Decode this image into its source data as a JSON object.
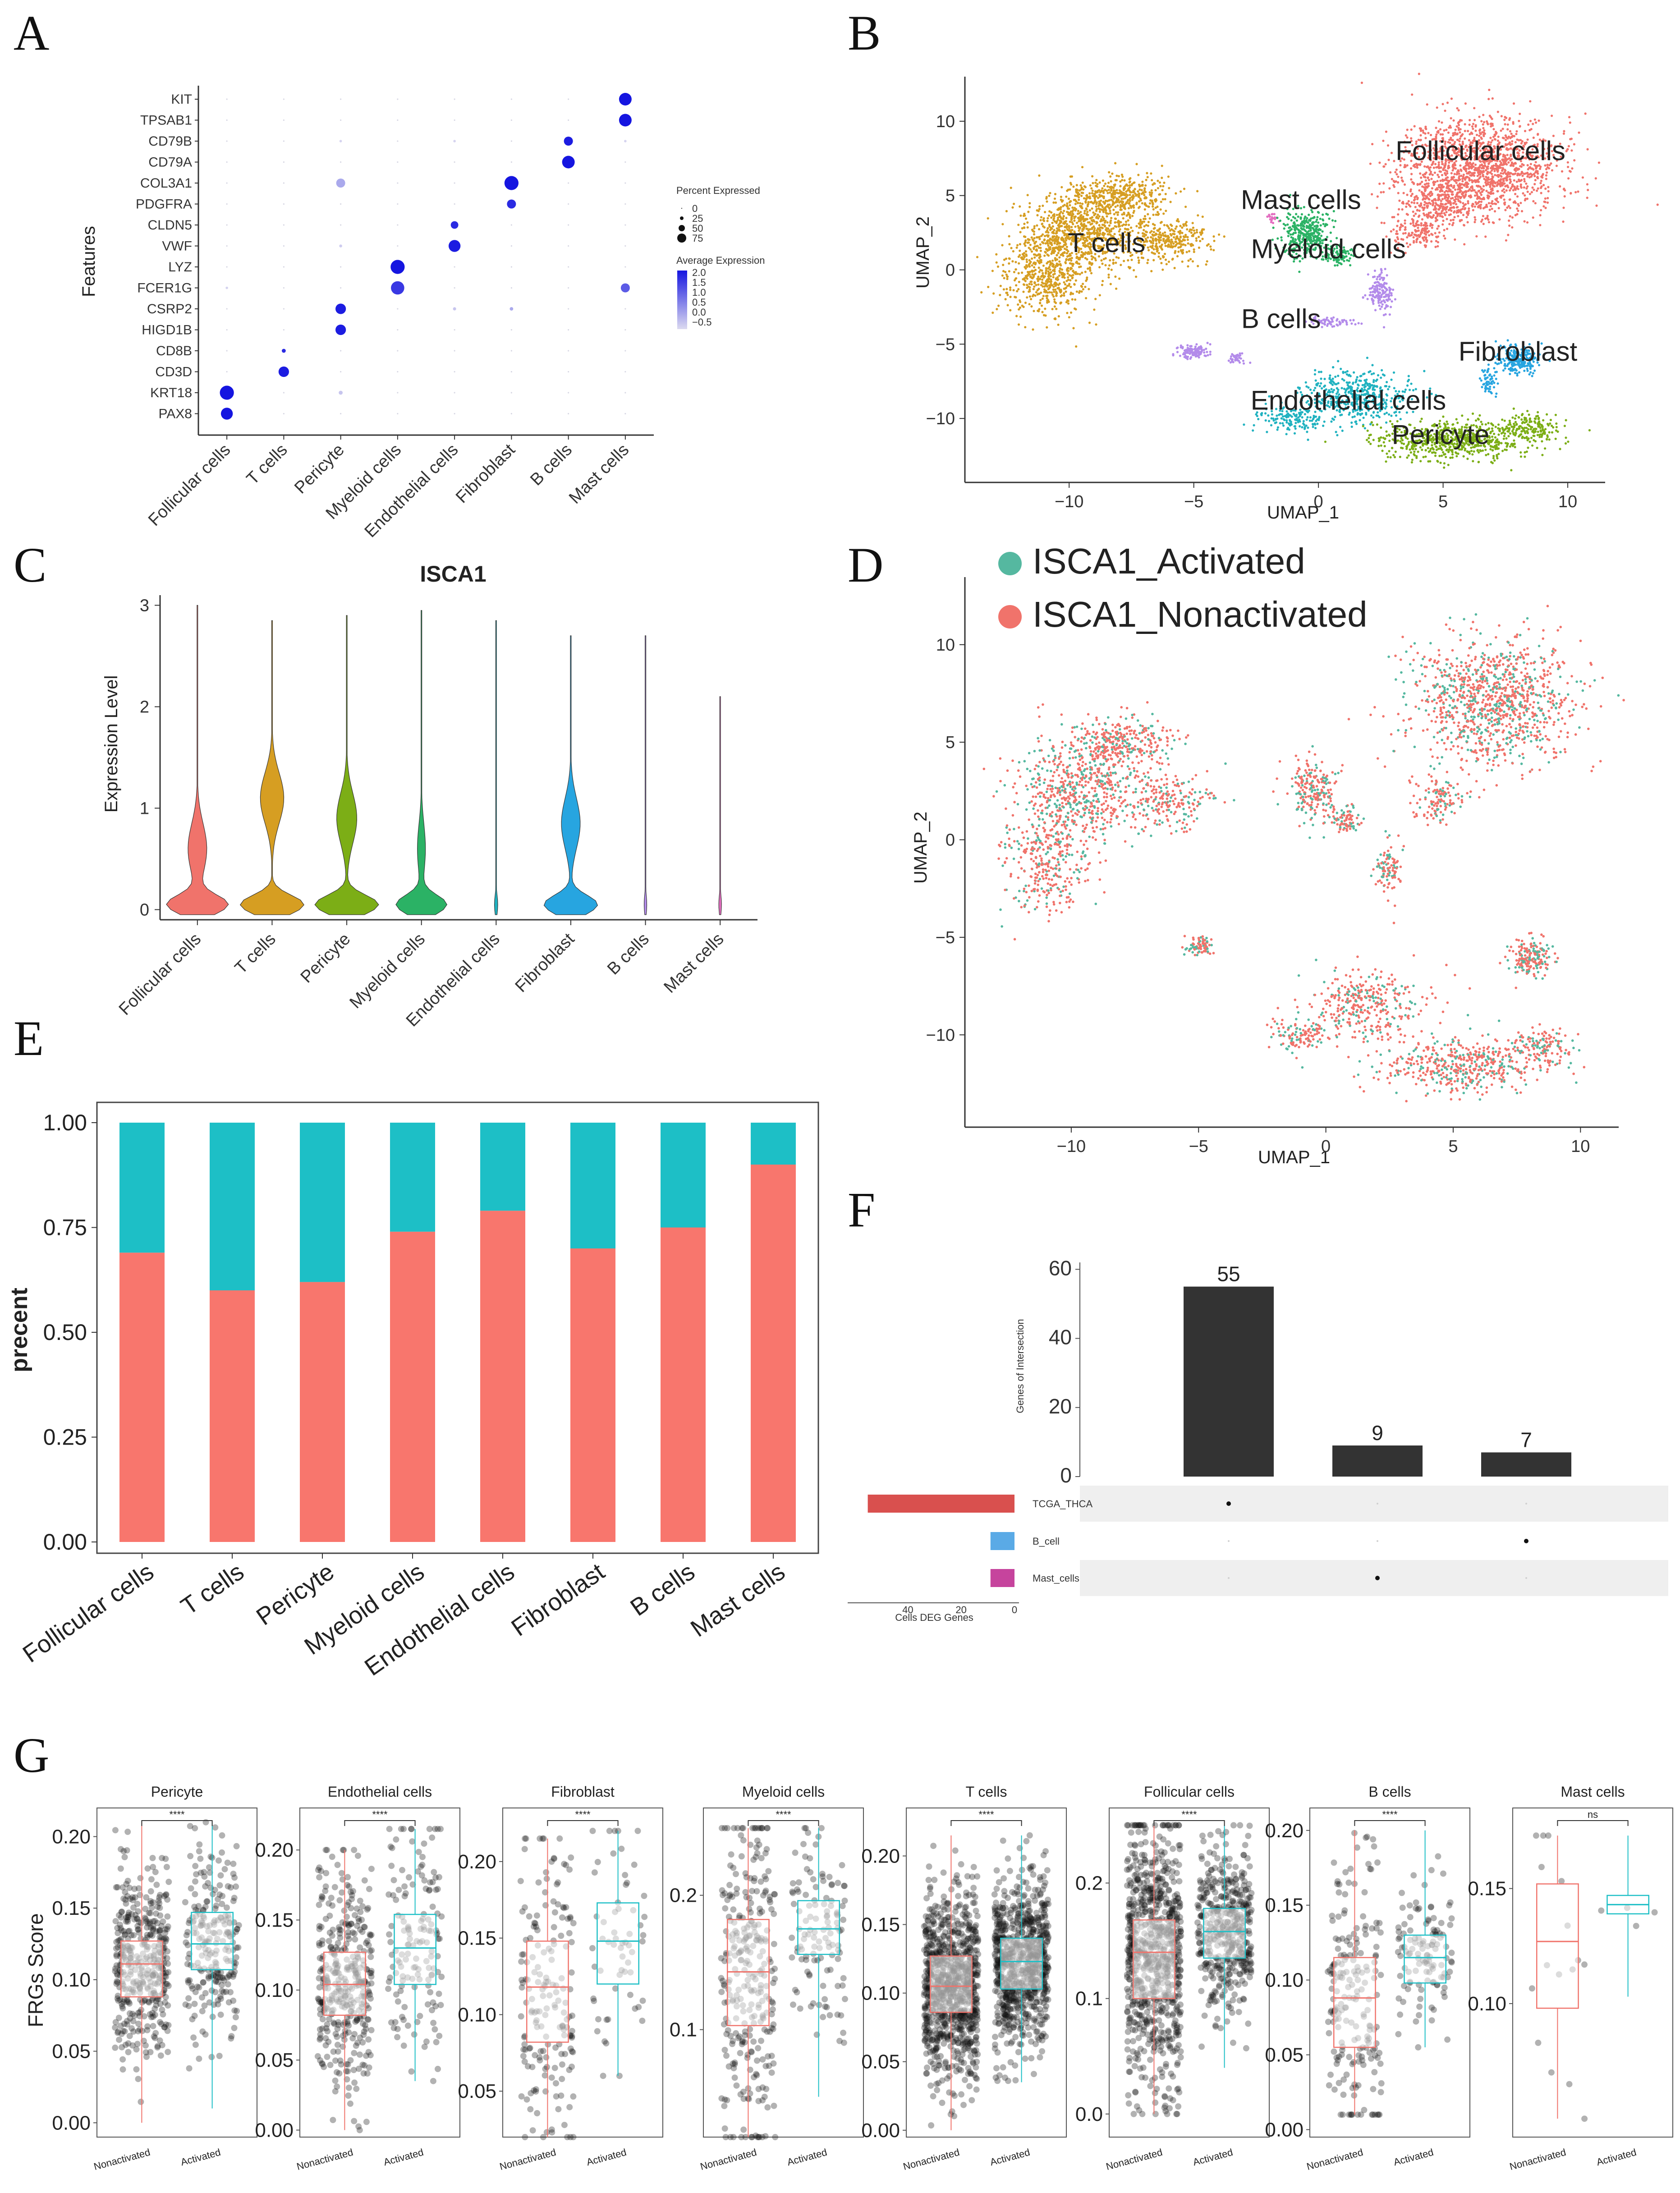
{
  "panels": {
    "a": "A",
    "b": "B",
    "c": "C",
    "d": "D",
    "e": "E",
    "f": "F",
    "g": "G"
  },
  "colors": {
    "follicular": "#f0736b",
    "tcells": "#d69e22",
    "pericyte": "#7cae16",
    "myeloid": "#2bb265",
    "endothelial": "#20b2c0",
    "fibroblast": "#27a5e0",
    "bcells": "#b38bea",
    "mast": "#e36ec0",
    "activated": "#55b8a0",
    "nonactivated": "#f0736b",
    "stack_top": "#1dbfc6",
    "stack_bottom": "#f8766d",
    "dot_high": "#1515e0",
    "dot_low": "#c9c5e8",
    "upset_bar": "#333333",
    "set_tcga": "#d9504e",
    "set_bcell": "#5aaae6",
    "set_mast": "#c6449d"
  },
  "chart_data": [
    {
      "id": "A",
      "type": "dotplot",
      "ylabel": "Features",
      "genes": [
        "KIT",
        "TPSAB1",
        "CD79B",
        "CD79A",
        "COL3A1",
        "PDGFRA",
        "CLDN5",
        "VWF",
        "LYZ",
        "FCER1G",
        "CSRP2",
        "HIGD1B",
        "CD8B",
        "CD3D",
        "KRT18",
        "PAX8"
      ],
      "cell_types": [
        "Follicular cells",
        "T cells",
        "Pericyte",
        "Myeloid cells",
        "Endothelial cells",
        "Fibroblast",
        "B cells",
        "Mast cells"
      ],
      "legend_size_title": "Percent Expressed",
      "legend_size_labels": [
        "0",
        "25",
        "50",
        "75"
      ],
      "legend_color_title": "Average Expression",
      "legend_color_labels": [
        "2.0",
        "1.5",
        "1.0",
        "0.5",
        "0.0",
        "−0.5"
      ],
      "dots": [
        {
          "gene": "KIT",
          "cell": "Mast cells",
          "pct": 75,
          "avg": 2.3
        },
        {
          "gene": "TPSAB1",
          "cell": "Mast cells",
          "pct": 75,
          "avg": 2.3
        },
        {
          "gene": "CD79B",
          "cell": "B cells",
          "pct": 50,
          "avg": 2.2
        },
        {
          "gene": "CD79A",
          "cell": "B cells",
          "pct": 75,
          "avg": 2.3
        },
        {
          "gene": "COL3A1",
          "cell": "Pericyte",
          "pct": 50,
          "avg": 0.2
        },
        {
          "gene": "COL3A1",
          "cell": "Fibroblast",
          "pct": 85,
          "avg": 2.3
        },
        {
          "gene": "PDGFRA",
          "cell": "Fibroblast",
          "pct": 50,
          "avg": 2.0
        },
        {
          "gene": "CLDN5",
          "cell": "Endothelial cells",
          "pct": 40,
          "avg": 2.0
        },
        {
          "gene": "VWF",
          "cell": "Endothelial cells",
          "pct": 70,
          "avg": 2.2
        },
        {
          "gene": "LYZ",
          "cell": "Myeloid cells",
          "pct": 85,
          "avg": 2.3
        },
        {
          "gene": "FCER1G",
          "cell": "Myeloid cells",
          "pct": 80,
          "avg": 1.8
        },
        {
          "gene": "FCER1G",
          "cell": "Mast cells",
          "pct": 50,
          "avg": 1.3
        },
        {
          "gene": "CSRP2",
          "cell": "Pericyte",
          "pct": 60,
          "avg": 2.2
        },
        {
          "gene": "HIGD1B",
          "cell": "Pericyte",
          "pct": 60,
          "avg": 2.2
        },
        {
          "gene": "CD8B",
          "cell": "T cells",
          "pct": 15,
          "avg": 2.0
        },
        {
          "gene": "CD3D",
          "cell": "T cells",
          "pct": 60,
          "avg": 2.2
        },
        {
          "gene": "KRT18",
          "cell": "Follicular cells",
          "pct": 85,
          "avg": 2.3
        },
        {
          "gene": "PAX8",
          "cell": "Follicular cells",
          "pct": 70,
          "avg": 2.3
        },
        {
          "gene": "CD79B",
          "cell": "Pericyte",
          "pct": 5,
          "avg": -0.4
        },
        {
          "gene": "CD79B",
          "cell": "Endothelial cells",
          "pct": 5,
          "avg": -0.4
        },
        {
          "gene": "VWF",
          "cell": "Pericyte",
          "pct": 8,
          "avg": -0.3
        },
        {
          "gene": "FCER1G",
          "cell": "Follicular cells",
          "pct": 5,
          "avg": -0.4
        },
        {
          "gene": "KRT18",
          "cell": "Pericyte",
          "pct": 15,
          "avg": -0.2
        },
        {
          "gene": "CSRP2",
          "cell": "Endothelial cells",
          "pct": 10,
          "avg": -0.2
        },
        {
          "gene": "CSRP2",
          "cell": "Fibroblast",
          "pct": 12,
          "avg": 0.2
        },
        {
          "gene": "CD79B",
          "cell": "Mast cells",
          "pct": 5,
          "avg": -0.4
        }
      ]
    },
    {
      "id": "B",
      "type": "scatter",
      "xlabel": "UMAP_1",
      "ylabel": "UMAP_2",
      "xlim": [
        -14,
        11.5
      ],
      "ylim": [
        -14,
        13
      ],
      "xticks": [
        -10,
        -5,
        0,
        5,
        10
      ],
      "yticks": [
        -10,
        -5,
        0,
        5,
        10
      ],
      "clusters": [
        {
          "name": "Follicular cells",
          "color": "follicular",
          "label_at": [
            6.5,
            8
          ],
          "blobs": [
            [
              6.5,
              7,
              2.8,
              3.0,
              1500
            ],
            [
              5,
              4.5,
              1.6,
              1.4,
              300
            ],
            [
              4,
              2.5,
              1,
              1,
              150
            ]
          ]
        },
        {
          "name": "T cells",
          "color": "tcells",
          "label_at": [
            -8.5,
            1.8
          ],
          "blobs": [
            [
              -9.5,
              2.5,
              2.2,
              2.4,
              900
            ],
            [
              -11,
              -0.5,
              1.5,
              2.5,
              500
            ],
            [
              -8,
              5,
              1.8,
              1.2,
              400
            ],
            [
              -6,
              2,
              1.5,
              1.3,
              300
            ]
          ]
        },
        {
          "name": "Mast cells",
          "color": "mast",
          "label_at": [
            -0.7,
            4.7
          ],
          "blobs": [
            [
              -1.8,
              3.5,
              0.25,
              0.25,
              20
            ]
          ]
        },
        {
          "name": "Myeloid cells",
          "color": "myeloid",
          "label_at": [
            0.4,
            1.4
          ],
          "blobs": [
            [
              -0.5,
              2.5,
              0.9,
              1.5,
              350
            ],
            [
              0.8,
              1,
              0.6,
              0.6,
              100
            ]
          ]
        },
        {
          "name": "B cells",
          "color": "bcells",
          "label_at": [
            -1.5,
            -3.3
          ],
          "blobs": [
            [
              -5,
              -5.5,
              0.5,
              0.4,
              120
            ],
            [
              -3.3,
              -6,
              0.3,
              0.3,
              40
            ],
            [
              2.5,
              -1.5,
              0.5,
              1.2,
              150
            ],
            [
              0.5,
              -3.5,
              1.0,
              0.3,
              60
            ]
          ]
        },
        {
          "name": "Fibroblast",
          "color": "fibroblast",
          "label_at": [
            8,
            -5.5
          ],
          "blobs": [
            [
              8,
              -6,
              0.8,
              0.9,
              250
            ],
            [
              6.8,
              -7.5,
              0.3,
              0.8,
              60
            ]
          ]
        },
        {
          "name": "Endothelial cells",
          "color": "endothelial",
          "label_at": [
            1.2,
            -8.8
          ],
          "blobs": [
            [
              1.5,
              -8.5,
              2,
              1.6,
              500
            ],
            [
              -1,
              -10,
              1.2,
              0.8,
              150
            ]
          ]
        },
        {
          "name": "Pericyte",
          "color": "pericyte",
          "label_at": [
            4.9,
            -11.1
          ],
          "blobs": [
            [
              5.5,
              -11.5,
              2.8,
              1.2,
              700
            ],
            [
              8.5,
              -10.5,
              1,
              0.8,
              150
            ]
          ]
        }
      ]
    },
    {
      "id": "C",
      "type": "violin",
      "title": "ISCA1",
      "ylabel": "Expression Level",
      "ylim": [
        -0.1,
        3.1
      ],
      "yticks": [
        0,
        1,
        2,
        3
      ],
      "categories": [
        "Follicular cells",
        "T cells",
        "Pericyte",
        "Myeloid cells",
        "Endothelial cells",
        "Fibroblast",
        "B cells",
        "Mast cells"
      ],
      "max_values": [
        3.0,
        2.85,
        2.9,
        2.95,
        2.85,
        2.7,
        2.7,
        2.1
      ],
      "shapes": [
        {
          "color": "follicular",
          "w0": 0.9,
          "bulge_y": 0.6,
          "bulge_w": 0.28
        },
        {
          "color": "tcells",
          "w0": 0.95,
          "bulge_y": 1.1,
          "bulge_w": 0.35
        },
        {
          "color": "pericyte",
          "w0": 0.95,
          "bulge_y": 0.9,
          "bulge_w": 0.3
        },
        {
          "color": "myeloid",
          "w0": 0.75,
          "bulge_y": 0.6,
          "bulge_w": 0.12
        },
        {
          "color": "endothelial",
          "w0": 0.05,
          "bulge_y": 0.0,
          "bulge_w": 0.0
        },
        {
          "color": "fibroblast",
          "w0": 0.8,
          "bulge_y": 0.85,
          "bulge_w": 0.28
        },
        {
          "color": "bcells",
          "w0": 0.04,
          "bulge_y": 0.0,
          "bulge_w": 0.0
        },
        {
          "color": "mast",
          "w0": 0.04,
          "bulge_y": 0.0,
          "bulge_w": 0.0
        }
      ]
    },
    {
      "id": "D",
      "type": "scatter",
      "xlabel": "UMAP_1",
      "ylabel": "UMAP_2",
      "xlim": [
        -14,
        11.5
      ],
      "ylim": [
        -14.5,
        13
      ],
      "xticks": [
        -10,
        -5,
        0,
        5,
        10
      ],
      "yticks": [
        -10,
        -5,
        0,
        5,
        10
      ],
      "legend": [
        "ISCA1_Activated",
        "ISCA1_Nonactivated"
      ]
    },
    {
      "id": "E",
      "type": "bar",
      "stacked": true,
      "ylabel": "precent",
      "ylim": [
        0,
        1
      ],
      "yticks": [
        "0.00",
        "0.25",
        "0.50",
        "0.75",
        "1.00"
      ],
      "categories": [
        "Follicular cells",
        "T cells",
        "Pericyte",
        "Myeloid cells",
        "Endothelial cells",
        "Fibroblast",
        "B cells",
        "Mast cells"
      ],
      "series": [
        {
          "name": "ISCA1_Nonactivated",
          "color": "stack_bottom",
          "values": [
            0.69,
            0.6,
            0.62,
            0.74,
            0.79,
            0.7,
            0.75,
            0.9
          ]
        },
        {
          "name": "ISCA1_Activated",
          "color": "stack_top",
          "values": [
            0.31,
            0.4,
            0.38,
            0.26,
            0.21,
            0.3,
            0.25,
            0.1
          ]
        }
      ]
    },
    {
      "id": "F",
      "type": "upset",
      "ylabel": "Genes of Intersection",
      "set_size_label": "Cells DEG Genes",
      "yticks": [
        0,
        20,
        40,
        60
      ],
      "ylim": [
        0,
        62
      ],
      "intersections": [
        55,
        9,
        7
      ],
      "intersection_labels": [
        "55",
        "9",
        "7"
      ],
      "sets": [
        {
          "name": "TCGA_THCA",
          "size": 55,
          "color": "set_tcga"
        },
        {
          "name": "B_cell",
          "size": 9,
          "color": "set_bcell"
        },
        {
          "name": "Mast_cells",
          "size": 9,
          "color": "set_mast"
        }
      ],
      "matrix": [
        [
          1,
          0,
          0
        ],
        [
          0,
          0,
          1
        ],
        [
          0,
          1,
          0
        ]
      ],
      "set_size_ticks": [
        "40",
        "20",
        "0"
      ]
    },
    {
      "id": "G",
      "type": "box",
      "ylabel": "FRGs Score",
      "groups": [
        "Nonactivated",
        "Activated"
      ],
      "significance_ns": "ns",
      "significance_star": "****",
      "subplots": [
        {
          "title": "Pericyte",
          "ylim": [
            -0.01,
            0.22
          ],
          "yticks": [
            "0.00",
            "0.05",
            "0.10",
            "0.15",
            "0.20"
          ],
          "ytick_vals": [
            0,
            0.05,
            0.1,
            0.15,
            0.2
          ],
          "sig": "****",
          "n": [
            420,
            240
          ],
          "boxes": [
            {
              "q1": 0.088,
              "med": 0.111,
              "q3": 0.127,
              "lo": 0.0,
              "hi": 0.21
            },
            {
              "q1": 0.107,
              "med": 0.125,
              "q3": 0.147,
              "lo": 0.01,
              "hi": 0.21
            }
          ]
        },
        {
          "title": "Endothelial cells",
          "ylim": [
            -0.005,
            0.23
          ],
          "yticks": [
            "0.00",
            "0.05",
            "0.10",
            "0.15",
            "0.20"
          ],
          "ytick_vals": [
            0,
            0.05,
            0.1,
            0.15,
            0.2
          ],
          "sig": "****",
          "n": [
            380,
            150
          ],
          "boxes": [
            {
              "q1": 0.082,
              "med": 0.104,
              "q3": 0.127,
              "lo": 0.0,
              "hi": 0.2
            },
            {
              "q1": 0.104,
              "med": 0.13,
              "q3": 0.154,
              "lo": 0.035,
              "hi": 0.215
            }
          ]
        },
        {
          "title": "Fibroblast",
          "ylim": [
            0.02,
            0.235
          ],
          "yticks": [
            "0.05",
            "0.10",
            "0.15",
            "0.20"
          ],
          "ytick_vals": [
            0.05,
            0.1,
            0.15,
            0.2
          ],
          "sig": "****",
          "n": [
            180,
            60
          ],
          "boxes": [
            {
              "q1": 0.082,
              "med": 0.118,
              "q3": 0.148,
              "lo": 0.02,
              "hi": 0.215
            },
            {
              "q1": 0.12,
              "med": 0.148,
              "q3": 0.173,
              "lo": 0.06,
              "hi": 0.22
            }
          ]
        },
        {
          "title": "Myeloid cells",
          "ylim": [
            0.02,
            0.265
          ],
          "yticks": [
            "0.1",
            "0.2"
          ],
          "ytick_vals": [
            0.1,
            0.2
          ],
          "sig": "****",
          "n": [
            300,
            120
          ],
          "boxes": [
            {
              "q1": 0.103,
              "med": 0.143,
              "q3": 0.182,
              "lo": 0.02,
              "hi": 0.25
            },
            {
              "q1": 0.156,
              "med": 0.175,
              "q3": 0.196,
              "lo": 0.05,
              "hi": 0.25
            }
          ]
        },
        {
          "title": "T cells",
          "ylim": [
            -0.005,
            0.235
          ],
          "yticks": [
            "0.00",
            "0.05",
            "0.10",
            "0.15",
            "0.20"
          ],
          "ytick_vals": [
            0,
            0.05,
            0.1,
            0.15,
            0.2
          ],
          "sig": "****",
          "n": [
            900,
            800
          ],
          "boxes": [
            {
              "q1": 0.086,
              "med": 0.105,
              "q3": 0.127,
              "lo": 0.0,
              "hi": 0.215
            },
            {
              "q1": 0.103,
              "med": 0.123,
              "q3": 0.14,
              "lo": 0.035,
              "hi": 0.215
            }
          ]
        },
        {
          "title": "Follicular cells",
          "ylim": [
            -0.02,
            0.265
          ],
          "yticks": [
            "0.0",
            "0.1",
            "0.2"
          ],
          "ytick_vals": [
            0,
            0.1,
            0.2
          ],
          "sig": "****",
          "n": [
            800,
            450
          ],
          "boxes": [
            {
              "q1": 0.1,
              "med": 0.14,
              "q3": 0.168,
              "lo": 0.0,
              "hi": 0.25
            },
            {
              "q1": 0.135,
              "med": 0.158,
              "q3": 0.178,
              "lo": 0.04,
              "hi": 0.25
            }
          ]
        },
        {
          "title": "B cells",
          "ylim": [
            -0.005,
            0.215
          ],
          "yticks": [
            "0.00",
            "0.05",
            "0.10",
            "0.15",
            "0.20"
          ],
          "ytick_vals": [
            0,
            0.05,
            0.1,
            0.15,
            0.2
          ],
          "sig": "****",
          "n": [
            200,
            120
          ],
          "boxes": [
            {
              "q1": 0.055,
              "med": 0.088,
              "q3": 0.115,
              "lo": 0.01,
              "hi": 0.2
            },
            {
              "q1": 0.098,
              "med": 0.115,
              "q3": 0.13,
              "lo": 0.055,
              "hi": 0.2
            }
          ]
        },
        {
          "title": "Mast cells",
          "ylim": [
            0.042,
            0.185
          ],
          "yticks": [
            "0.10",
            "0.15"
          ],
          "ytick_vals": [
            0.1,
            0.15
          ],
          "sig": "ns",
          "n": [
            16,
            4
          ],
          "boxes": [
            {
              "q1": 0.098,
              "med": 0.127,
              "q3": 0.152,
              "lo": 0.05,
              "hi": 0.173
            },
            {
              "q1": 0.139,
              "med": 0.143,
              "q3": 0.147,
              "lo": 0.103,
              "hi": 0.173
            }
          ]
        }
      ]
    }
  ]
}
